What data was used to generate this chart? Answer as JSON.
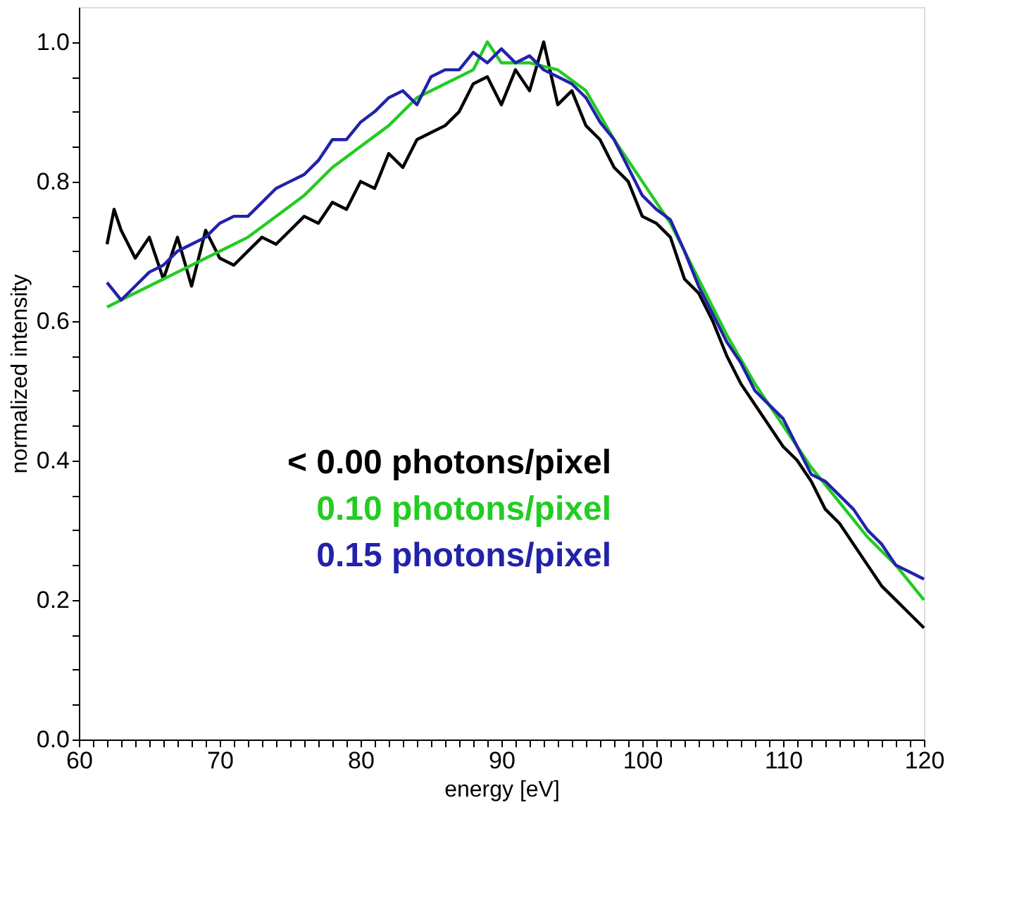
{
  "chart_data": {
    "type": "line",
    "xlabel": "energy [eV]",
    "ylabel": "normalized intensity",
    "xlim": [
      60,
      120
    ],
    "ylim": [
      0,
      1.05
    ],
    "xticks": [
      60,
      {
        "value": 61,
        "label": null
      },
      {
        "value": 62,
        "label": null
      },
      {
        "value": 63,
        "label": null
      },
      {
        "value": 64,
        "label": null
      },
      {
        "value": 65,
        "label": null
      },
      {
        "value": 66,
        "label": null
      },
      {
        "value": 67,
        "label": null
      },
      {
        "value": 68,
        "label": null
      },
      {
        "value": 69,
        "label": null
      },
      70,
      {
        "value": 71,
        "label": null
      },
      {
        "value": 72,
        "label": null
      },
      {
        "value": 73,
        "label": null
      },
      {
        "value": 74,
        "label": null
      },
      {
        "value": 75,
        "label": null
      },
      {
        "value": 76,
        "label": null
      },
      {
        "value": 77,
        "label": null
      },
      {
        "value": 78,
        "label": null
      },
      {
        "value": 79,
        "label": null
      },
      80,
      {
        "value": 81,
        "label": null
      },
      {
        "value": 82,
        "label": null
      },
      {
        "value": 83,
        "label": null
      },
      {
        "value": 84,
        "label": null
      },
      {
        "value": 85,
        "label": null
      },
      {
        "value": 86,
        "label": null
      },
      {
        "value": 87,
        "label": null
      },
      {
        "value": 88,
        "label": null
      },
      {
        "value": 89,
        "label": null
      },
      90,
      {
        "value": 91,
        "label": null
      },
      {
        "value": 92,
        "label": null
      },
      {
        "value": 93,
        "label": null
      },
      {
        "value": 94,
        "label": null
      },
      {
        "value": 95,
        "label": null
      },
      {
        "value": 96,
        "label": null
      },
      {
        "value": 97,
        "label": null
      },
      {
        "value": 98,
        "label": null
      },
      {
        "value": 99,
        "label": null
      },
      100,
      {
        "value": 101,
        "label": null
      },
      {
        "value": 102,
        "label": null
      },
      {
        "value": 103,
        "label": null
      },
      {
        "value": 104,
        "label": null
      },
      {
        "value": 105,
        "label": null
      },
      {
        "value": 106,
        "label": null
      },
      {
        "value": 107,
        "label": null
      },
      {
        "value": 108,
        "label": null
      },
      {
        "value": 109,
        "label": null
      },
      110,
      {
        "value": 111,
        "label": null
      },
      {
        "value": 112,
        "label": null
      },
      {
        "value": 113,
        "label": null
      },
      {
        "value": 114,
        "label": null
      },
      {
        "value": 115,
        "label": null
      },
      {
        "value": 116,
        "label": null
      },
      {
        "value": 117,
        "label": null
      },
      {
        "value": 118,
        "label": null
      },
      {
        "value": 119,
        "label": null
      },
      120
    ],
    "yticks": [
      {
        "value": 0,
        "label": "0.0"
      },
      {
        "value": 0.05,
        "label": null
      },
      {
        "value": 0.1,
        "label": null
      },
      {
        "value": 0.15,
        "label": null
      },
      {
        "value": 0.2,
        "label": "0.2"
      },
      {
        "value": 0.25,
        "label": null
      },
      {
        "value": 0.3,
        "label": null
      },
      {
        "value": 0.35,
        "label": null
      },
      {
        "value": 0.4,
        "label": "0.4"
      },
      {
        "value": 0.45,
        "label": null
      },
      {
        "value": 0.5,
        "label": null
      },
      {
        "value": 0.55,
        "label": null
      },
      {
        "value": 0.6,
        "label": "0.6"
      },
      {
        "value": 0.65,
        "label": null
      },
      {
        "value": 0.7,
        "label": null
      },
      {
        "value": 0.75,
        "label": null
      },
      {
        "value": 0.8,
        "label": "0.8"
      },
      {
        "value": 0.85,
        "label": null
      },
      {
        "value": 0.9,
        "label": null
      },
      {
        "value": 0.95,
        "label": null
      },
      {
        "value": 1,
        "label": "1.0"
      }
    ],
    "grid": false,
    "legend": "bottom left",
    "marker": "none",
    "line_style": "solid",
    "series": [
      {
        "name": "< 0.00 photons/pixel",
        "color": "#000000",
        "x": [
          62,
          62.5,
          63,
          64,
          65,
          66,
          67,
          68,
          69,
          70,
          71,
          72,
          73,
          74,
          75,
          76,
          77,
          78,
          79,
          80,
          81,
          82,
          83,
          84,
          85,
          86,
          87,
          88,
          89,
          90,
          91,
          92,
          93,
          94,
          95,
          96,
          97,
          98,
          99,
          100,
          101,
          102,
          103,
          104,
          105,
          106,
          107,
          108,
          109,
          110,
          111,
          112,
          113,
          114,
          115,
          116,
          117,
          118,
          119,
          120
        ],
        "values": [
          0.71,
          0.76,
          0.73,
          0.69,
          0.72,
          0.66,
          0.72,
          0.65,
          0.73,
          0.69,
          0.68,
          0.7,
          0.72,
          0.71,
          0.73,
          0.75,
          0.74,
          0.77,
          0.76,
          0.8,
          0.79,
          0.84,
          0.82,
          0.86,
          0.87,
          0.88,
          0.9,
          0.94,
          0.95,
          0.91,
          0.96,
          0.93,
          1.0,
          0.91,
          0.93,
          0.88,
          0.86,
          0.82,
          0.8,
          0.75,
          0.74,
          0.72,
          0.66,
          0.64,
          0.6,
          0.55,
          0.51,
          0.48,
          0.45,
          0.42,
          0.4,
          0.37,
          0.33,
          0.31,
          0.28,
          0.25,
          0.22,
          0.2,
          0.18,
          0.16
        ]
      },
      {
        "name": "0.10 photons/pixel",
        "color": "#22cc22",
        "x": [
          62,
          64,
          66,
          68,
          70,
          72,
          74,
          76,
          78,
          80,
          82,
          84,
          86,
          88,
          89,
          90,
          92,
          94,
          96,
          98,
          100,
          102,
          104,
          106,
          108,
          110,
          112,
          114,
          116,
          118,
          120
        ],
        "values": [
          0.62,
          0.64,
          0.66,
          0.68,
          0.7,
          0.72,
          0.75,
          0.78,
          0.82,
          0.85,
          0.88,
          0.92,
          0.94,
          0.96,
          1.0,
          0.97,
          0.97,
          0.96,
          0.93,
          0.86,
          0.8,
          0.74,
          0.66,
          0.58,
          0.51,
          0.45,
          0.39,
          0.34,
          0.29,
          0.25,
          0.2
        ]
      },
      {
        "name": "0.15 photons/pixel",
        "color": "#2222aa",
        "x": [
          62,
          63,
          64,
          65,
          66,
          67,
          68,
          69,
          70,
          71,
          72,
          73,
          74,
          75,
          76,
          77,
          78,
          79,
          80,
          81,
          82,
          83,
          84,
          85,
          86,
          87,
          88,
          89,
          90,
          91,
          92,
          93,
          94,
          95,
          96,
          97,
          98,
          99,
          100,
          101,
          102,
          103,
          104,
          105,
          106,
          107,
          108,
          109,
          110,
          111,
          112,
          113,
          114,
          115,
          116,
          117,
          118,
          119,
          120
        ],
        "values": [
          0.655,
          0.63,
          0.65,
          0.67,
          0.68,
          0.7,
          0.71,
          0.72,
          0.74,
          0.75,
          0.75,
          0.77,
          0.79,
          0.8,
          0.81,
          0.83,
          0.86,
          0.86,
          0.885,
          0.9,
          0.92,
          0.93,
          0.91,
          0.95,
          0.96,
          0.96,
          0.985,
          0.97,
          0.99,
          0.97,
          0.98,
          0.96,
          0.95,
          0.94,
          0.92,
          0.885,
          0.86,
          0.82,
          0.78,
          0.76,
          0.745,
          0.7,
          0.65,
          0.61,
          0.57,
          0.54,
          0.5,
          0.48,
          0.46,
          0.42,
          0.38,
          0.37,
          0.35,
          0.33,
          0.3,
          0.28,
          0.25,
          0.24,
          0.23
        ]
      }
    ]
  }
}
